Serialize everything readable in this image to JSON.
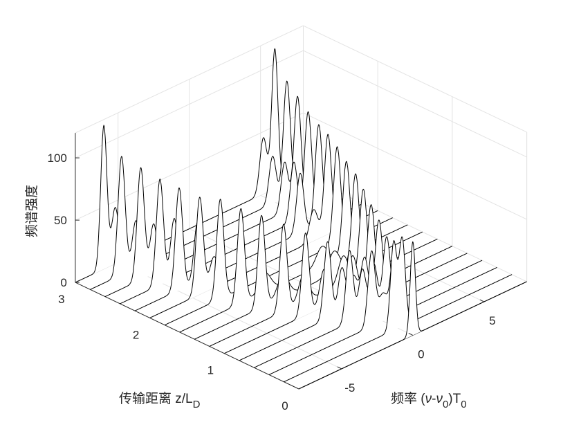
{
  "chart_data": {
    "type": "waterfall-3d",
    "zlabel": "频谱强度",
    "xlabel": {
      "text": "传输距离 z/L",
      "sub": "D"
    },
    "ylabel": {
      "prefix": "频率 (",
      "nu": "ν",
      "dash": "-",
      "nu0": "ν",
      "nu0sub": "0",
      "suffix": ")T",
      "suffix_sub": "0"
    },
    "xlim": [
      0,
      3
    ],
    "ylim": [
      -8,
      8
    ],
    "zlim": [
      0,
      120
    ],
    "xticks": [
      "0",
      "1",
      "2",
      "3"
    ],
    "yticks": [
      "-5",
      "0",
      "5"
    ],
    "zticks": [
      "0",
      "50",
      "100"
    ],
    "grid": true,
    "line_color": "#000000",
    "num_curves": 16,
    "z_step": 0.2,
    "peaks": [
      [
        {
          "nu": 0,
          "h": 75,
          "w": 0.18
        }
      ],
      [
        {
          "nu": -0.3,
          "h": 70,
          "w": 0.22
        },
        {
          "nu": 0.3,
          "h": 70,
          "w": 0.22
        }
      ],
      [
        {
          "nu": -0.8,
          "h": 60,
          "w": 0.25
        },
        {
          "nu": 0,
          "h": 22,
          "w": 0.3
        },
        {
          "nu": 0.8,
          "h": 55,
          "w": 0.25
        }
      ],
      [
        {
          "nu": -1.3,
          "h": 58,
          "w": 0.25
        },
        {
          "nu": -0.4,
          "h": 38,
          "w": 0.25
        },
        {
          "nu": 0.4,
          "h": 38,
          "w": 0.25
        },
        {
          "nu": 1.3,
          "h": 55,
          "w": 0.25
        }
      ],
      [
        {
          "nu": -1.8,
          "h": 62,
          "w": 0.25
        },
        {
          "nu": -0.8,
          "h": 35,
          "w": 0.25
        },
        {
          "nu": 0,
          "h": 25,
          "w": 0.3
        },
        {
          "nu": 0.8,
          "h": 35,
          "w": 0.25
        },
        {
          "nu": 1.8,
          "h": 60,
          "w": 0.25
        }
      ],
      [
        {
          "nu": -2.3,
          "h": 66,
          "w": 0.25
        },
        {
          "nu": -1.0,
          "h": 30,
          "w": 0.3
        },
        {
          "nu": 1.0,
          "h": 30,
          "w": 0.3
        },
        {
          "nu": 2.3,
          "h": 64,
          "w": 0.25
        }
      ],
      [
        {
          "nu": -2.8,
          "h": 70,
          "w": 0.25
        },
        {
          "nu": -1.4,
          "h": 22,
          "w": 0.35
        },
        {
          "nu": 1.4,
          "h": 22,
          "w": 0.35
        },
        {
          "nu": 2.8,
          "h": 68,
          "w": 0.25
        }
      ],
      [
        {
          "nu": -3.3,
          "h": 74,
          "w": 0.25
        },
        {
          "nu": -1.8,
          "h": 18,
          "w": 0.4
        },
        {
          "nu": 1.8,
          "h": 18,
          "w": 0.4
        },
        {
          "nu": 3.3,
          "h": 72,
          "w": 0.25
        }
      ],
      [
        {
          "nu": -3.7,
          "h": 76,
          "w": 0.25
        },
        {
          "nu": -2.0,
          "h": 15,
          "w": 0.4
        },
        {
          "nu": 2.0,
          "h": 15,
          "w": 0.4
        },
        {
          "nu": 3.7,
          "h": 74,
          "w": 0.25
        }
      ],
      [
        {
          "nu": -4.1,
          "h": 80,
          "w": 0.25
        },
        {
          "nu": 4.1,
          "h": 78,
          "w": 0.25
        }
      ],
      [
        {
          "nu": -4.5,
          "h": 78,
          "w": 0.25
        },
        {
          "nu": -3.5,
          "h": 25,
          "w": 0.3
        },
        {
          "nu": 3.5,
          "h": 25,
          "w": 0.3
        },
        {
          "nu": 4.5,
          "h": 80,
          "w": 0.25
        }
      ],
      [
        {
          "nu": -4.9,
          "h": 82,
          "w": 0.25
        },
        {
          "nu": -3.6,
          "h": 48,
          "w": 0.25
        },
        {
          "nu": 3.6,
          "h": 48,
          "w": 0.25
        },
        {
          "nu": 4.9,
          "h": 80,
          "w": 0.25
        }
      ],
      [
        {
          "nu": -5.2,
          "h": 85,
          "w": 0.25
        },
        {
          "nu": -4.2,
          "h": 48,
          "w": 0.25
        },
        {
          "nu": 4.2,
          "h": 48,
          "w": 0.25
        },
        {
          "nu": 5.2,
          "h": 83,
          "w": 0.25
        }
      ],
      [
        {
          "nu": -5.5,
          "h": 90,
          "w": 0.25
        },
        {
          "nu": -4.6,
          "h": 40,
          "w": 0.25
        },
        {
          "nu": 4.6,
          "h": 40,
          "w": 0.25
        },
        {
          "nu": 5.5,
          "h": 88,
          "w": 0.25
        }
      ],
      [
        {
          "nu": -5.8,
          "h": 95,
          "w": 0.25
        },
        {
          "nu": -4.8,
          "h": 38,
          "w": 0.25
        },
        {
          "nu": 4.8,
          "h": 38,
          "w": 0.25
        },
        {
          "nu": 5.8,
          "h": 93,
          "w": 0.25
        }
      ],
      [
        {
          "nu": -6.0,
          "h": 115,
          "w": 0.22
        },
        {
          "nu": -5.2,
          "h": 45,
          "w": 0.25
        },
        {
          "nu": 5.2,
          "h": 45,
          "w": 0.25
        },
        {
          "nu": 6.0,
          "h": 112,
          "w": 0.22
        }
      ]
    ]
  }
}
